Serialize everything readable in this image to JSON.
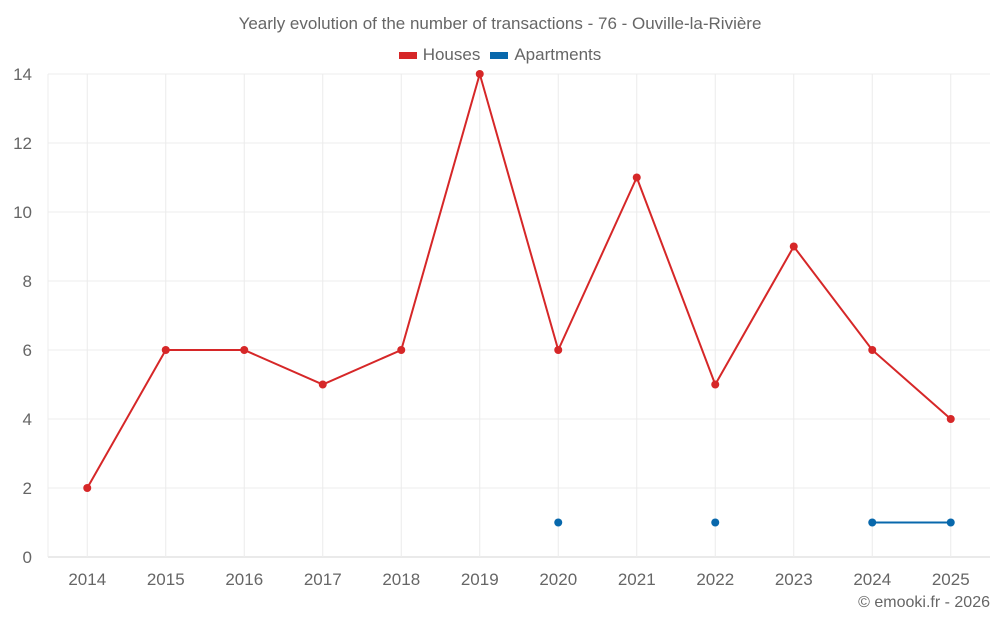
{
  "chart_data": {
    "type": "line",
    "title": "Yearly evolution of the number of transactions - 76 - Ouville-la-Rivière",
    "xlabel": "",
    "ylabel": "",
    "categories": [
      "2014",
      "2015",
      "2016",
      "2017",
      "2018",
      "2019",
      "2020",
      "2021",
      "2022",
      "2023",
      "2024",
      "2025"
    ],
    "ylim": [
      0,
      14
    ],
    "yticks": [
      0,
      2,
      4,
      6,
      8,
      10,
      12,
      14
    ],
    "grid": true,
    "legend_position": "top",
    "series": [
      {
        "name": "Houses",
        "color": "#d62728",
        "values": [
          2,
          6,
          6,
          5,
          6,
          14,
          6,
          11,
          5,
          9,
          6,
          4
        ]
      },
      {
        "name": "Apartments",
        "color": "#0868ac",
        "values": [
          null,
          null,
          null,
          null,
          null,
          null,
          1,
          null,
          1,
          null,
          1,
          1
        ]
      }
    ]
  },
  "credit": "© emooki.fr - 2026"
}
